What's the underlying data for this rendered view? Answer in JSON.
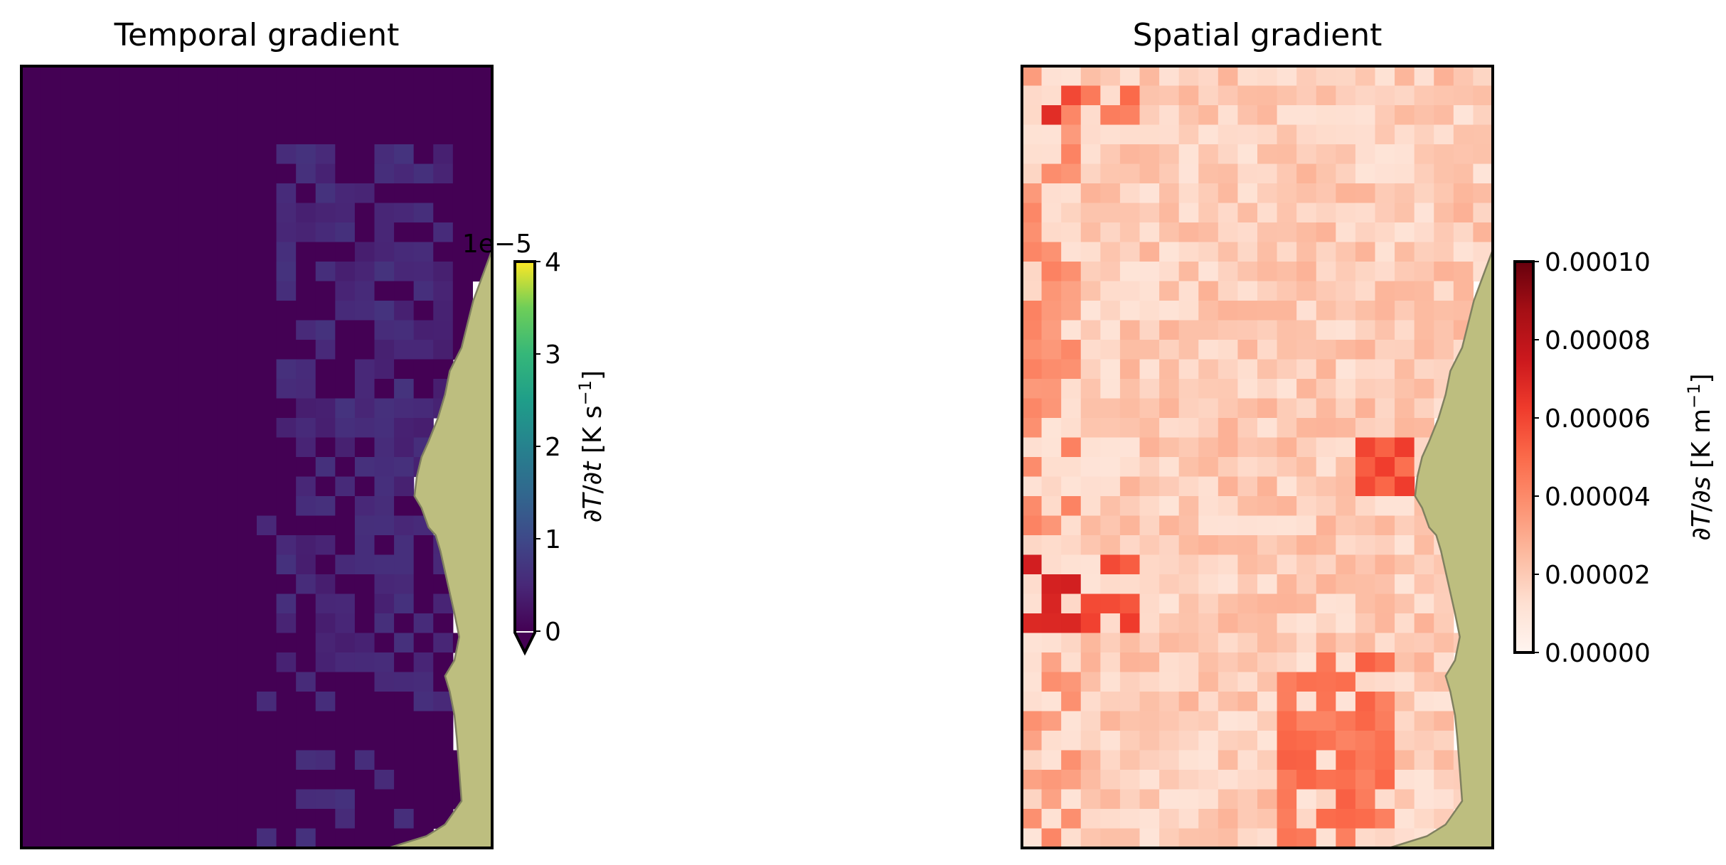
{
  "chart_data": [
    {
      "type": "heatmap",
      "title": "Temporal gradient",
      "colormap": "viridis",
      "colorbar": {
        "label_prefix": "∂",
        "label_T": "T",
        "label_slash": "/∂",
        "label_var": "t",
        "label_units": " [K s",
        "label_sup": "−1",
        "label_close": "]",
        "range": [
          0,
          4
        ],
        "ticks": [
          "0",
          "1",
          "2",
          "3",
          "4"
        ],
        "multiplier": "1e−5",
        "extend": "min"
      },
      "grid": {
        "rows": 40,
        "cols": 24
      },
      "land_color": "#bdbe7f",
      "land_edge_color": "#808060"
    },
    {
      "type": "heatmap",
      "title": "Spatial gradient",
      "colormap": "Reds",
      "colorbar": {
        "label_prefix": "∂",
        "label_T": "T",
        "label_slash": "/∂",
        "label_var": "s",
        "label_units": " [K m",
        "label_sup": "−1",
        "label_close": "]",
        "range": [
          0,
          0.0001
        ],
        "ticks": [
          "0.00000",
          "0.00002",
          "0.00004",
          "0.00006",
          "0.00008",
          "0.00010"
        ],
        "extend": "neither"
      },
      "grid": {
        "rows": 40,
        "cols": 24
      },
      "land_color": "#bdbe7f",
      "land_edge_color": "#808060"
    }
  ]
}
